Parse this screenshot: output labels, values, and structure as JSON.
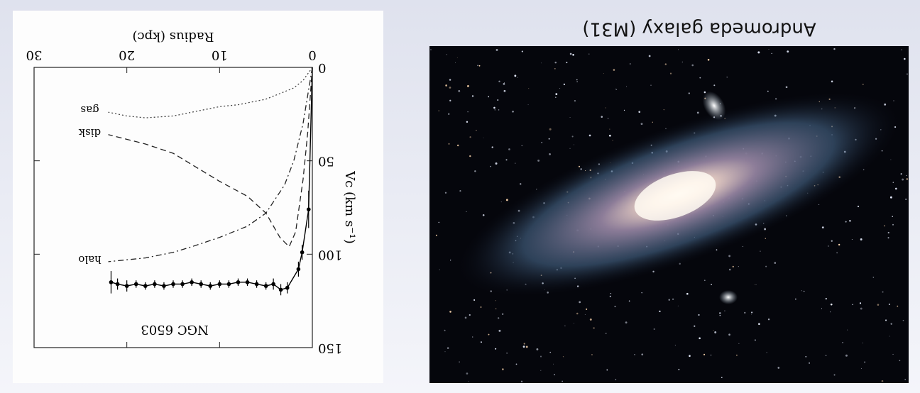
{
  "slide": {
    "caption": "Andromeda galaxy (M31)"
  },
  "chart_data": {
    "type": "line",
    "title": "NGC 6503",
    "xlabel": "Radius (kpc)",
    "ylabel": "Vc (km s⁻¹)",
    "xlim": [
      0,
      30
    ],
    "xticks": [
      0,
      10,
      20,
      30
    ],
    "ylim": [
      0,
      150
    ],
    "yticks": [
      0,
      50,
      100,
      150
    ],
    "series": [
      {
        "name": "halo",
        "color": "#222222",
        "dash": "dash-dot",
        "x": [
          0,
          1,
          2,
          3,
          5,
          7,
          10,
          13,
          15,
          18,
          22
        ],
        "values": [
          0,
          30,
          50,
          63,
          78,
          85,
          91,
          96,
          99,
          102,
          104
        ]
      },
      {
        "name": "disk",
        "color": "#222222",
        "dash": "dashed",
        "x": [
          0,
          0.5,
          1,
          1.8,
          2.5,
          3.5,
          5,
          7,
          10,
          13,
          15,
          18,
          22
        ],
        "values": [
          0,
          35,
          60,
          88,
          96,
          91,
          78,
          69,
          61,
          52,
          46,
          41,
          36
        ]
      },
      {
        "name": "gas",
        "color": "#444444",
        "dash": "dotted",
        "x": [
          0,
          1,
          2,
          5,
          8,
          10,
          13,
          15,
          18,
          20,
          22
        ],
        "values": [
          0,
          7,
          11,
          17,
          20,
          21,
          24,
          26,
          27,
          26,
          24
        ]
      },
      {
        "type": "scatter",
        "color": "#000000",
        "x": [
          0.4,
          1.1,
          1.5,
          2.7,
          3.4,
          4.2,
          5,
          6,
          7,
          8,
          9,
          10,
          11,
          12,
          13,
          14,
          15,
          16,
          17,
          18,
          19,
          20,
          21,
          21.7
        ],
        "values": [
          76,
          99,
          108,
          118,
          119,
          116,
          117,
          116,
          115,
          115,
          116,
          116,
          117,
          116,
          115,
          116,
          116,
          117,
          116,
          117,
          116,
          117,
          116,
          115
        ],
        "errors": [
          10,
          4,
          4,
          3,
          3,
          3,
          2,
          2,
          2,
          2,
          2,
          2,
          2,
          2,
          2,
          2,
          2,
          2,
          2,
          2,
          2,
          3,
          3,
          6
        ]
      }
    ]
  }
}
